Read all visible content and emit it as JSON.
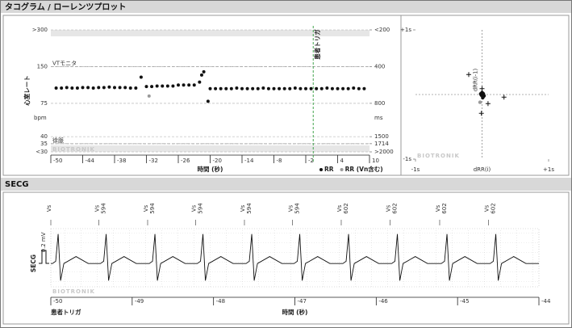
{
  "panels": {
    "top": "タコグラム / ローレンツプロット",
    "bottom": "SECG"
  },
  "chart_data": [
    {
      "type": "scatter",
      "x_label": "時間 (秒)",
      "y_label": "心室レート",
      "y_unit": "bpm",
      "y2_unit": "ms",
      "xlim": [
        -50,
        10
      ],
      "xticks": [
        -50,
        -44,
        -38,
        -32,
        -26,
        -20,
        -14,
        -8,
        -2,
        4,
        10
      ],
      "ylim": [
        30,
        300
      ],
      "yscale": "log",
      "yticks": [
        {
          "value": 300,
          "label": ">300"
        },
        150,
        75,
        40,
        35,
        {
          "value": 30,
          "label": "<30"
        }
      ],
      "y2lim": [
        2000,
        200
      ],
      "y2scale": "log",
      "y2ticks": [
        {
          "value": 200,
          "label": "<200"
        },
        400,
        800,
        1500,
        1714,
        {
          "value": 2000,
          "label": ">2000"
        }
      ],
      "series": [
        {
          "name": "RR",
          "color": "#111111",
          "x": [
            -49,
            -48,
            -47,
            -46,
            -45,
            -44,
            -43,
            -42,
            -41,
            -40,
            -39,
            -38,
            -37,
            -36,
            -35,
            -34,
            -33,
            -32,
            -31,
            -30,
            -29,
            -28,
            -27,
            -26,
            -25,
            -24,
            -23,
            -22,
            -21.6,
            -21.2,
            -20.4,
            -20,
            -19,
            -18,
            -17,
            -16,
            -15,
            -14,
            -13,
            -12,
            -11,
            -10,
            -9,
            -8,
            -7,
            -6,
            -5,
            -4,
            -3,
            -2,
            -1,
            0,
            1,
            2,
            3,
            4,
            5,
            6,
            7,
            8,
            9
          ],
          "values": [
            100,
            100,
            101,
            100,
            100,
            101,
            101,
            100,
            101,
            101,
            102,
            101,
            101,
            101,
            100,
            100,
            123,
            103,
            103,
            104,
            104,
            104,
            104,
            106,
            106,
            106,
            106,
            112,
            128,
            136,
            78,
            99,
            99,
            99,
            99,
            99,
            100,
            99,
            99,
            99,
            99,
            100,
            99,
            99,
            99,
            99,
            99,
            100,
            99,
            99,
            99,
            99,
            99,
            100,
            99,
            99,
            99,
            99,
            100,
            99,
            99
          ]
        },
        {
          "name": "RR (Vn含む)",
          "color": "#9a9a9a",
          "x": [
            -31.5
          ],
          "values": [
            86
          ]
        }
      ],
      "zones": [
        {
          "label": "VTモニタ",
          "value": 150
        },
        {
          "label": "徐脈",
          "value": 35
        }
      ],
      "trigger": {
        "label": "患者トリガ",
        "x": -0.6,
        "color": "#2e9a3a"
      },
      "watermark": "BIOTRONIK"
    },
    {
      "type": "scatter",
      "x_label": "dRR(i)",
      "y_label": "dRR(i-1)",
      "xlim": [
        -1,
        1
      ],
      "ylim": [
        -1,
        1
      ],
      "xticks": [
        {
          "value": -1,
          "label": "-1s"
        },
        {
          "value": 1,
          "label": "+1s"
        }
      ],
      "yticks": [
        {
          "value": -1,
          "label": "-1s"
        },
        {
          "value": 1,
          "label": "+1s"
        }
      ],
      "series": [
        {
          "marker": "dot",
          "color": "#111111",
          "x": [
            0,
            0.02,
            -0.01,
            0.01,
            0.03,
            -0.02,
            0.0,
            0.02,
            0.01
          ],
          "values": [
            0,
            0.01,
            -0.01,
            0.02,
            -0.02,
            0.01,
            0.03,
            -0.03,
            -0.05
          ]
        },
        {
          "marker": "cross",
          "color": "#111111",
          "x": [
            -0.2,
            0.0,
            0.33,
            0.09,
            -0.01
          ],
          "values": [
            0.31,
            0.09,
            -0.04,
            -0.14,
            -0.29
          ]
        },
        {
          "marker": "dot",
          "color": "#9a9a9a",
          "x": [
            -0.03
          ],
          "values": [
            -0.12
          ]
        }
      ],
      "watermark": "BIOTRONIK"
    },
    {
      "type": "line",
      "x_label": "時間 (秒)",
      "y_label": "SECG",
      "scale_label": "0.2 mV",
      "annotation": "患者トリガ",
      "watermark": "BIOTRONIK",
      "color": "#111111",
      "xlim": [
        -50,
        -44
      ],
      "xticks": [
        -50,
        -49,
        -48,
        -47,
        -46,
        -45,
        -44
      ],
      "ylim": [
        -0.3,
        0.45
      ],
      "events": [
        {
          "label": "Vs",
          "x": -50
        },
        {
          "label": "Vs",
          "interval": 594,
          "x": -49.41
        },
        {
          "label": "Vs",
          "interval": 594,
          "x": -48.81
        },
        {
          "label": "Vs",
          "interval": 594,
          "x": -48.22
        },
        {
          "label": "Vs",
          "interval": 594,
          "x": -47.62
        },
        {
          "label": "Vs",
          "interval": 594,
          "x": -47.03
        },
        {
          "label": "Vs",
          "interval": 602,
          "x": -46.43
        },
        {
          "label": "Vs",
          "interval": 602,
          "x": -45.83
        },
        {
          "label": "Vs",
          "interval": 602,
          "x": -45.22
        },
        {
          "label": "Vs",
          "interval": 602,
          "x": -44.62
        }
      ],
      "x": [
        -50,
        -49.98,
        -49.94,
        -49.91,
        -49.88,
        -49.84,
        -49.69,
        -49.54,
        -49.39,
        -49.35,
        -49.32,
        -49.29,
        -49.25,
        -49.1,
        -48.95,
        -48.79,
        -48.75,
        -48.72,
        -48.69,
        -48.65,
        -48.5,
        -48.35,
        -48.2,
        -48.16,
        -48.13,
        -48.1,
        -48.06,
        -47.91,
        -47.76,
        -47.6,
        -47.56,
        -47.53,
        -47.5,
        -47.46,
        -47.31,
        -47.16,
        -47.01,
        -46.97,
        -46.94,
        -46.91,
        -46.87,
        -46.72,
        -46.57,
        -46.41,
        -46.37,
        -46.34,
        -46.31,
        -46.27,
        -46.12,
        -45.97,
        -45.81,
        -45.77,
        -45.74,
        -45.71,
        -45.67,
        -45.52,
        -45.37,
        -45.2,
        -45.16,
        -45.13,
        -45.1,
        -45.06,
        -44.91,
        -44.76,
        -44.6,
        -44.56,
        -44.53,
        -44.5,
        -44.46,
        -44.31,
        -44.16,
        -44
      ],
      "values": [
        0,
        0,
        0.03,
        0.38,
        -0.22,
        0,
        0.09,
        0,
        0,
        0.03,
        0.38,
        -0.22,
        0,
        0.09,
        0,
        0,
        0.03,
        0.38,
        -0.22,
        0,
        0.09,
        0,
        0,
        0.03,
        0.38,
        -0.22,
        0,
        0.09,
        0,
        0,
        0.03,
        0.38,
        -0.22,
        0,
        0.09,
        0,
        0,
        0.03,
        0.38,
        -0.22,
        0,
        0.09,
        0,
        0,
        0.03,
        0.38,
        -0.22,
        0,
        0.09,
        0,
        0,
        0.03,
        0.38,
        -0.22,
        0,
        0.09,
        0,
        0,
        0.03,
        0.38,
        -0.22,
        0,
        0.09,
        0,
        0,
        0.03,
        0.38,
        -0.22,
        0,
        0.09,
        0,
        0
      ]
    }
  ]
}
